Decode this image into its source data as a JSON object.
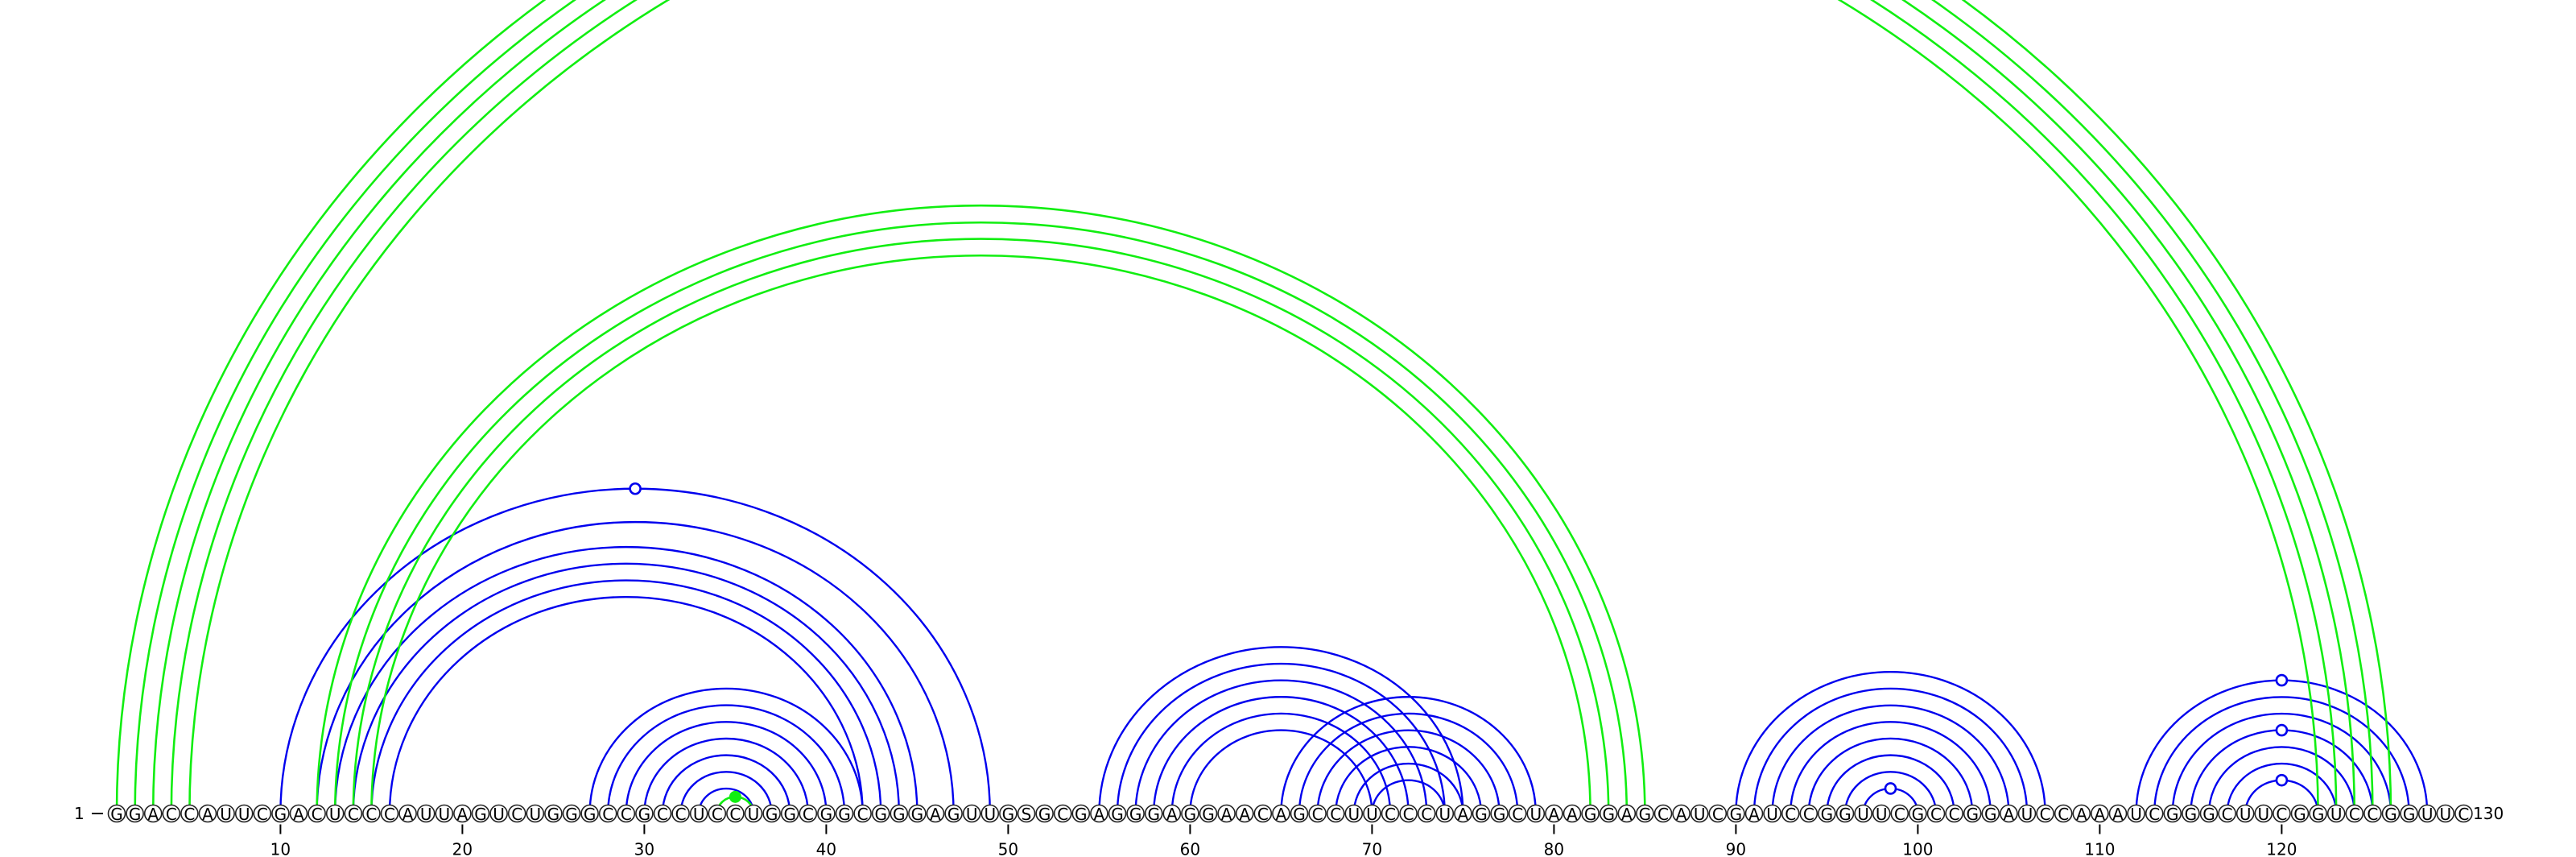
{
  "sequence": "GGACCAUUCGACUCCCAUUAGUCUGGGCCGCCUCCUGGCGGCGGGAGUUGSGCGAGGGAGGAACAGCCUUCCCUAGGCUAAGGAGCAUCGAUCCGGUUCGCCGGAUCCAAAUCGGGCUUCGGUCCGGUUC",
  "start_label": "1",
  "end_label": "130",
  "ticks": [
    {
      "pos": 10,
      "label": "10"
    },
    {
      "pos": 20,
      "label": "20"
    },
    {
      "pos": 30,
      "label": "30"
    },
    {
      "pos": 40,
      "label": "40"
    },
    {
      "pos": 50,
      "label": "50"
    },
    {
      "pos": 60,
      "label": "60"
    },
    {
      "pos": 70,
      "label": "70"
    },
    {
      "pos": 80,
      "label": "80"
    },
    {
      "pos": 90,
      "label": "90"
    },
    {
      "pos": 100,
      "label": "100"
    },
    {
      "pos": 110,
      "label": "110"
    },
    {
      "pos": 120,
      "label": "120"
    }
  ],
  "colors": {
    "blue": "#0000ee",
    "green": "#11ee11"
  },
  "green_arcs": [
    [
      1,
      126
    ],
    [
      2,
      125
    ],
    [
      3,
      124
    ],
    [
      4,
      123
    ],
    [
      5,
      122
    ],
    [
      12,
      85
    ],
    [
      13,
      84
    ],
    [
      14,
      83
    ],
    [
      15,
      82
    ],
    [
      34,
      36
    ]
  ],
  "blue_arcs": [
    [
      10,
      49
    ],
    [
      12,
      47
    ],
    [
      13,
      45
    ],
    [
      14,
      44
    ],
    [
      15,
      43
    ],
    [
      16,
      42
    ],
    [
      27,
      42
    ],
    [
      28,
      41
    ],
    [
      29,
      40
    ],
    [
      30,
      39
    ],
    [
      31,
      38
    ],
    [
      32,
      37
    ],
    [
      33,
      36
    ],
    [
      55,
      75
    ],
    [
      56,
      74
    ],
    [
      57,
      73
    ],
    [
      58,
      72
    ],
    [
      59,
      71
    ],
    [
      60,
      70
    ],
    [
      65,
      79
    ],
    [
      66,
      78
    ],
    [
      67,
      77
    ],
    [
      68,
      76
    ],
    [
      69,
      75
    ],
    [
      70,
      74
    ],
    [
      90,
      107
    ],
    [
      91,
      106
    ],
    [
      92,
      105
    ],
    [
      93,
      104
    ],
    [
      94,
      103
    ],
    [
      95,
      102
    ],
    [
      96,
      101
    ],
    [
      97,
      100
    ],
    [
      112,
      128
    ],
    [
      113,
      127
    ],
    [
      114,
      126
    ],
    [
      115,
      125
    ],
    [
      116,
      124
    ],
    [
      117,
      123
    ],
    [
      118,
      122
    ]
  ],
  "markers": [
    {
      "pair": [
        10,
        49
      ],
      "kind": "open"
    },
    {
      "pair": [
        97,
        100
      ],
      "kind": "open"
    },
    {
      "pair": [
        112,
        128
      ],
      "kind": "open"
    },
    {
      "pair": [
        115,
        125
      ],
      "kind": "open"
    },
    {
      "pair": [
        118,
        122
      ],
      "kind": "open"
    },
    {
      "pair": [
        34,
        36
      ],
      "kind": "filled"
    }
  ]
}
